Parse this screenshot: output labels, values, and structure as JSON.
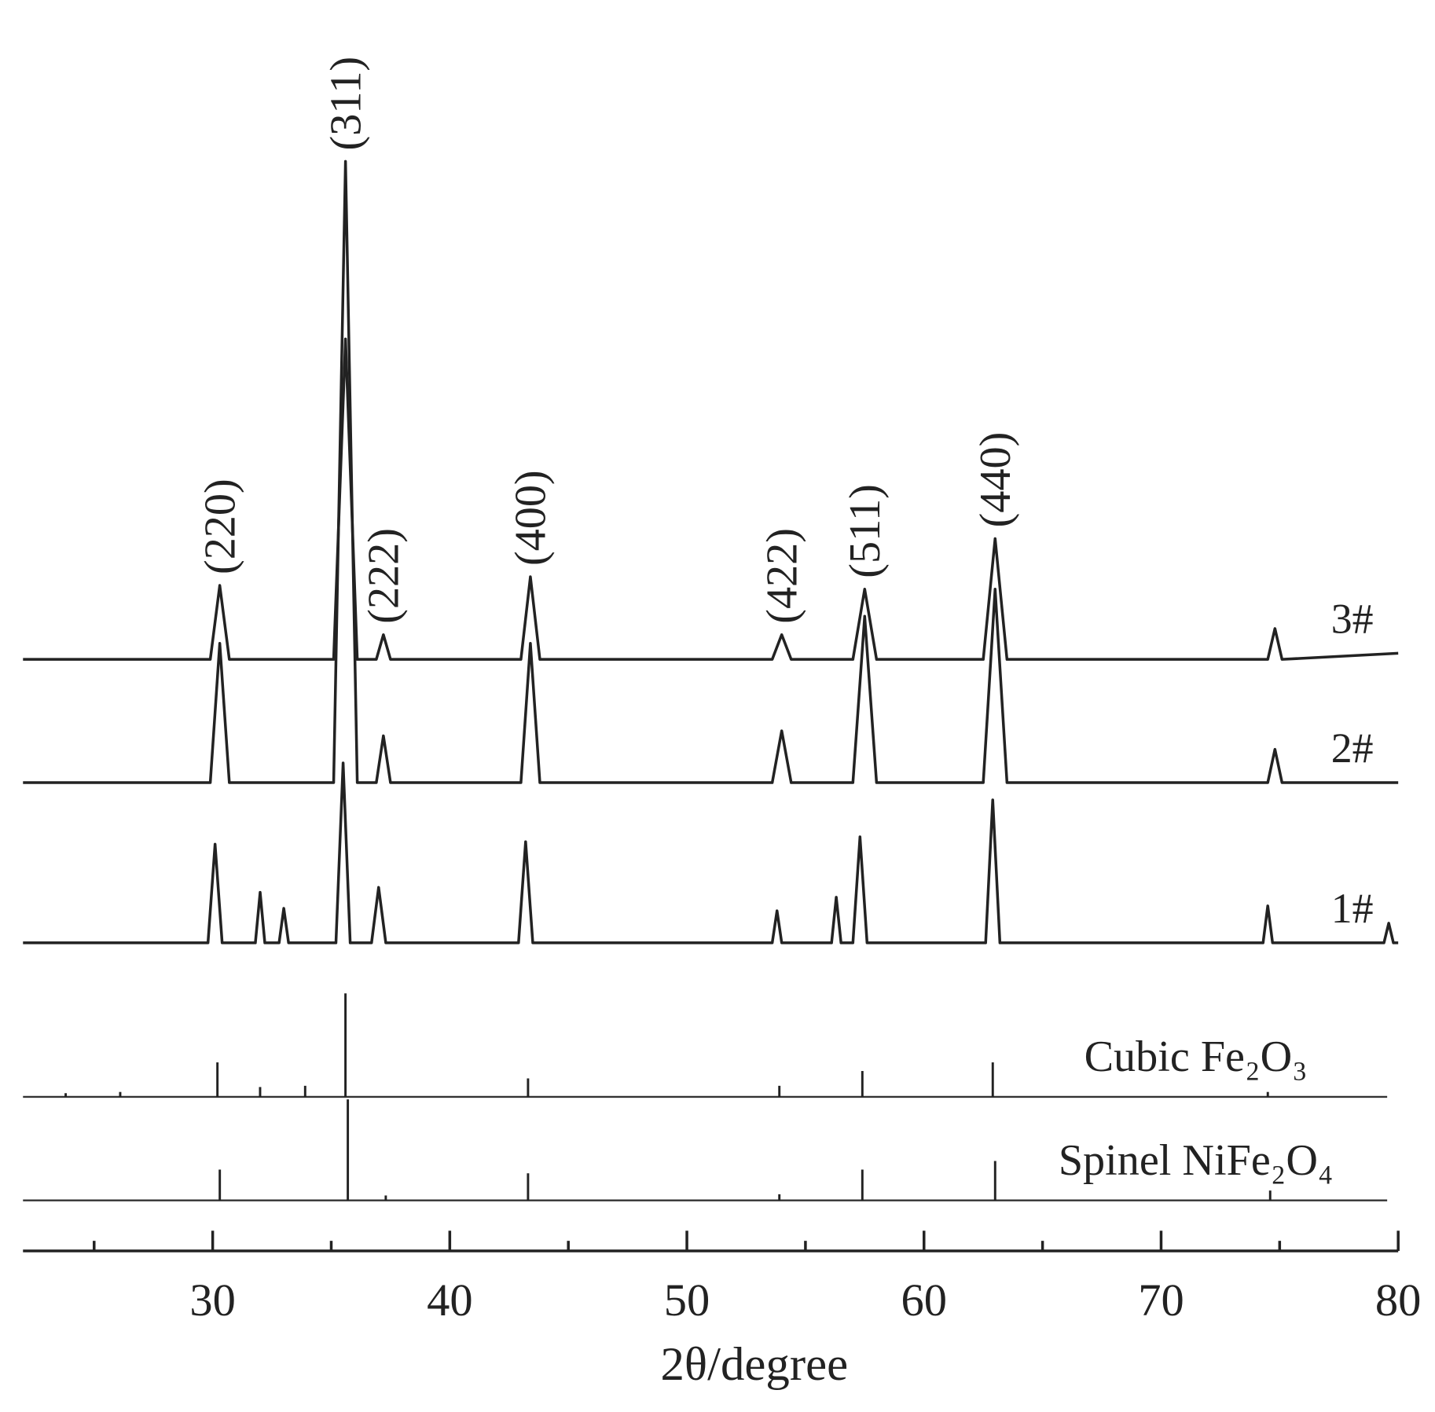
{
  "chart_data": {
    "type": "line",
    "xlabel": "2θ/degree",
    "xlim": [
      22,
      80
    ],
    "xticks": [
      30,
      40,
      50,
      60,
      70,
      80
    ],
    "xminor_ticks": [
      25,
      35,
      45,
      55,
      65,
      75
    ],
    "ylim": [
      0,
      100
    ],
    "color": "#222222",
    "series": [
      {
        "name": "3#",
        "x": [
          22,
          29.9,
          30.3,
          30.7,
          35.1,
          35.6,
          36.1,
          36.9,
          37.2,
          37.5,
          43.0,
          43.4,
          43.8,
          53.6,
          54.0,
          54.4,
          57.0,
          57.5,
          58.0,
          62.5,
          63.0,
          63.5,
          74.5,
          74.8,
          75.1,
          80
        ],
        "values": [
          48,
          48,
          54,
          48,
          48,
          74,
          48,
          48,
          50,
          48,
          48,
          54.7,
          48,
          48,
          50,
          48,
          48,
          53.7,
          48,
          48,
          57.8,
          48,
          48,
          50.5,
          48,
          48.5
        ]
      },
      {
        "name": "2#",
        "x": [
          22,
          29.9,
          30.3,
          30.7,
          35.1,
          35.6,
          36.1,
          36.9,
          37.2,
          37.5,
          43.0,
          43.4,
          43.8,
          53.6,
          54.0,
          54.4,
          57.0,
          57.5,
          58.0,
          62.5,
          63.0,
          63.5,
          74.5,
          74.8,
          75.1,
          80
        ],
        "values": [
          38,
          38,
          49.3,
          38,
          38,
          88.4,
          38,
          38,
          41.8,
          38,
          38,
          49.3,
          38,
          38,
          42.2,
          38,
          38,
          51.5,
          38,
          38,
          53.7,
          38,
          38,
          40.7,
          38,
          38
        ]
      },
      {
        "name": "1#",
        "x": [
          22,
          29.8,
          30.1,
          30.4,
          31.8,
          32.0,
          32.2,
          32.8,
          33.0,
          33.2,
          35.2,
          35.5,
          35.8,
          36.7,
          37.0,
          37.3,
          42.9,
          43.2,
          43.5,
          53.6,
          53.8,
          54.0,
          56.1,
          56.3,
          56.5,
          57.0,
          57.3,
          57.6,
          62.6,
          62.9,
          63.2,
          74.3,
          74.5,
          74.7,
          79.4,
          79.6,
          79.8,
          80
        ],
        "values": [
          25,
          25,
          33,
          25,
          25,
          29.1,
          25,
          25,
          27.8,
          25,
          25,
          39.6,
          25,
          25,
          29.5,
          25,
          25,
          33.2,
          25,
          25,
          27.6,
          25,
          25,
          28.7,
          25,
          25,
          33.6,
          25,
          25,
          36.6,
          25,
          25,
          28,
          25,
          25,
          26.6,
          25,
          25
        ]
      }
    ],
    "references": [
      {
        "name": "Cubic Fe₂O₃",
        "baseline": 12.5,
        "x": [
          23.8,
          26.1,
          30.2,
          32.0,
          33.9,
          35.6,
          43.3,
          53.9,
          57.4,
          62.9,
          74.5
        ],
        "values": [
          12.8,
          12.9,
          15.3,
          13.3,
          13.4,
          20.9,
          14.0,
          13.4,
          14.6,
          15.3,
          12.9
        ]
      },
      {
        "name": "Spinel NiFe₂O₄",
        "baseline": 4.1,
        "x": [
          30.3,
          35.7,
          37.3,
          43.3,
          53.9,
          57.4,
          63.0,
          74.6
        ],
        "values": [
          6.6,
          12.3,
          4.5,
          6.3,
          4.6,
          6.6,
          7.3,
          4.9
        ]
      }
    ],
    "annotations": [
      {
        "text": "(220)",
        "x": 30.3
      },
      {
        "text": "(311)",
        "x": 35.6
      },
      {
        "text": "(222)",
        "x": 37.2
      },
      {
        "text": "(400)",
        "x": 43.4
      },
      {
        "text": "(422)",
        "x": 54.0
      },
      {
        "text": "(511)",
        "x": 57.5
      },
      {
        "text": "(440)",
        "x": 63.0
      }
    ]
  }
}
